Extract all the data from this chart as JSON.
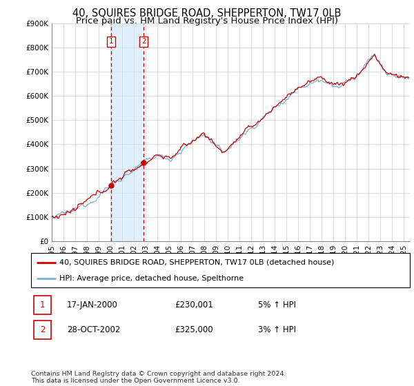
{
  "title": "40, SQUIRES BRIDGE ROAD, SHEPPERTON, TW17 0LB",
  "subtitle": "Price paid vs. HM Land Registry's House Price Index (HPI)",
  "ylim": [
    0,
    900000
  ],
  "yticks": [
    0,
    100000,
    200000,
    300000,
    400000,
    500000,
    600000,
    700000,
    800000,
    900000
  ],
  "ytick_labels": [
    "£0",
    "£100K",
    "£200K",
    "£300K",
    "£400K",
    "£500K",
    "£600K",
    "£700K",
    "£800K",
    "£900K"
  ],
  "xlim_start": 1995.0,
  "xlim_end": 2025.5,
  "xtick_years": [
    1995,
    1996,
    1997,
    1998,
    1999,
    2000,
    2001,
    2002,
    2003,
    2004,
    2005,
    2006,
    2007,
    2008,
    2009,
    2010,
    2011,
    2012,
    2013,
    2014,
    2015,
    2016,
    2017,
    2018,
    2019,
    2020,
    2021,
    2022,
    2023,
    2024,
    2025
  ],
  "marker1_x": 2000.04,
  "marker1_label": "1",
  "marker1_price": 230001,
  "marker2_x": 2002.83,
  "marker2_label": "2",
  "marker2_price": 325000,
  "shade_color": "#cce5f5",
  "shade_alpha": 0.6,
  "vline_color": "#cc0000",
  "vline_style": "--",
  "red_line_color": "#cc0000",
  "blue_line_color": "#7ab0d4",
  "legend_entry1": "40, SQUIRES BRIDGE ROAD, SHEPPERTON, TW17 0LB (detached house)",
  "legend_entry2": "HPI: Average price, detached house, Spelthorne",
  "transaction1_num": "1",
  "transaction1_date": "17-JAN-2000",
  "transaction1_price": "£230,001",
  "transaction1_hpi": "5% ↑ HPI",
  "transaction2_num": "2",
  "transaction2_date": "28-OCT-2002",
  "transaction2_price": "£325,000",
  "transaction2_hpi": "3% ↑ HPI",
  "footer": "Contains HM Land Registry data © Crown copyright and database right 2024.\nThis data is licensed under the Open Government Licence v3.0.",
  "title_fontsize": 10.5,
  "subtitle_fontsize": 9.5,
  "tick_fontsize": 7.5,
  "legend_fontsize": 8,
  "table_fontsize": 8.5
}
